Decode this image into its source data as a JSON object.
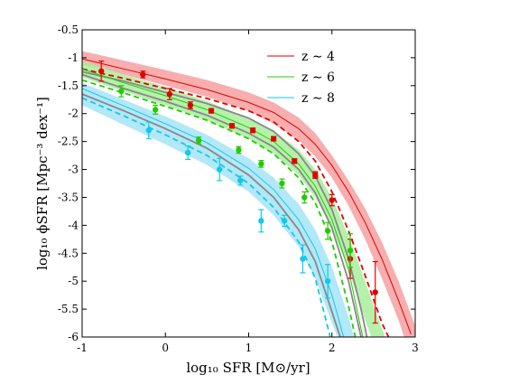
{
  "chart_data": {
    "type": "line",
    "xlabel": "log₁₀ SFR [M⊙/yr]",
    "ylabel": "log₁₀ ϕSFR [Mpc⁻³ dex⁻¹]",
    "xlim": [
      -1,
      3
    ],
    "ylim": [
      -6,
      -0.5
    ],
    "xticks": [
      "-1",
      "0",
      "1",
      "2",
      "3"
    ],
    "yticks": [
      "-0.5",
      "-1",
      "-1.5",
      "-2",
      "-2.5",
      "-3",
      "-3.5",
      "-4",
      "-4.5",
      "-5",
      "-5.5",
      "-6"
    ],
    "grid": false,
    "legend_position": "top-right",
    "legend": [
      "z ∼ 4",
      "z ∼ 6",
      "z ∼ 8"
    ],
    "colors": {
      "z4": "#e00000",
      "z4_band": "#f7a0a0",
      "z6": "#22cc00",
      "z6_band": "#a8ee9c",
      "z8": "#11c8ee",
      "z8_band": "#a4e4f6",
      "grey": "#888888"
    },
    "series": [
      {
        "name": "z ∼ 4",
        "color": "#e00000",
        "band": {
          "x": [
            -1,
            -0.5,
            0,
            0.5,
            1,
            1.3,
            1.6,
            1.8,
            2,
            2.2,
            2.4,
            2.6,
            2.8,
            3
          ],
          "upper": [
            -0.88,
            -1.05,
            -1.22,
            -1.4,
            -1.62,
            -1.8,
            -2.07,
            -2.35,
            -2.75,
            -3.2,
            -3.7,
            -4.3,
            -5,
            -5.8
          ],
          "lower": [
            -1.12,
            -1.3,
            -1.5,
            -1.7,
            -1.95,
            -2.18,
            -2.48,
            -2.77,
            -3.15,
            -3.65,
            -4.25,
            -4.95,
            -5.7,
            -6.6
          ]
        },
        "model_solid": {
          "x": [
            -1,
            -0.5,
            0,
            0.5,
            1,
            1.3,
            1.6,
            1.8,
            2,
            2.2,
            2.4,
            2.6,
            2.8,
            2.95
          ],
          "y": [
            -1.02,
            -1.2,
            -1.38,
            -1.57,
            -1.8,
            -1.98,
            -2.27,
            -2.55,
            -2.93,
            -3.4,
            -3.95,
            -4.6,
            -5.35,
            -5.95
          ]
        },
        "model_dashed": {
          "x": [
            -1,
            -0.5,
            0,
            0.5,
            1,
            1.3,
            1.6,
            1.8,
            2,
            2.2,
            2.4,
            2.6,
            2.68
          ],
          "y": [
            -1.2,
            -1.37,
            -1.55,
            -1.73,
            -1.95,
            -2.15,
            -2.5,
            -2.85,
            -3.4,
            -4.1,
            -4.9,
            -5.75,
            -6
          ]
        },
        "model_grey": {
          "x": [
            -1,
            -0.5,
            0,
            0.5,
            1,
            1.3,
            1.6,
            1.8,
            2,
            2.2,
            2.35,
            2.42
          ],
          "y": [
            -1.25,
            -1.42,
            -1.62,
            -1.82,
            -2.08,
            -2.32,
            -2.72,
            -3.12,
            -3.72,
            -4.6,
            -5.5,
            -6
          ]
        },
        "points": [
          {
            "x": -0.77,
            "y": -1.24,
            "yerr_low": 0.18,
            "yerr_high": 0.18,
            "marker": "circle"
          },
          {
            "x": -0.27,
            "y": -1.3,
            "yerr_low": 0.06,
            "yerr_high": 0.06,
            "marker": "circle"
          },
          {
            "x": 0.05,
            "y": -1.65,
            "yerr_low": 0.1,
            "yerr_high": 0.1,
            "marker": "circle"
          },
          {
            "x": 0.3,
            "y": -1.85,
            "yerr_low": 0.06,
            "yerr_high": 0.06,
            "marker": "circle"
          },
          {
            "x": 0.55,
            "y": -1.95,
            "yerr_low": 0.04,
            "yerr_high": 0.04,
            "marker": "square"
          },
          {
            "x": 0.8,
            "y": -2.22,
            "yerr_low": 0.04,
            "yerr_high": 0.04,
            "marker": "square"
          },
          {
            "x": 1.05,
            "y": -2.3,
            "yerr_low": 0.04,
            "yerr_high": 0.04,
            "marker": "square"
          },
          {
            "x": 1.3,
            "y": -2.45,
            "yerr_low": 0.04,
            "yerr_high": 0.04,
            "marker": "square"
          },
          {
            "x": 1.55,
            "y": -2.85,
            "yerr_low": 0.04,
            "yerr_high": 0.04,
            "marker": "square"
          },
          {
            "x": 1.8,
            "y": -3.1,
            "yerr_low": 0.06,
            "yerr_high": 0.06,
            "marker": "square"
          },
          {
            "x": 2.0,
            "y": -3.55,
            "yerr_low": 0.1,
            "yerr_high": 0.1,
            "marker": "circle"
          },
          {
            "x": 2.22,
            "y": -4.6,
            "yerr_low": 0.35,
            "yerr_high": 0.35,
            "marker": "circle"
          },
          {
            "x": 2.52,
            "y": -5.2,
            "yerr_low": 0.55,
            "yerr_high": 0.55,
            "marker": "circle"
          }
        ]
      },
      {
        "name": "z ∼ 6",
        "color": "#22cc00",
        "band": {
          "x": [
            -1,
            -0.5,
            0,
            0.5,
            1,
            1.3,
            1.6,
            1.8,
            2,
            2.2,
            2.4,
            2.6,
            2.75
          ],
          "upper": [
            -1.05,
            -1.3,
            -1.52,
            -1.78,
            -2.08,
            -2.3,
            -2.65,
            -3.0,
            -3.5,
            -4.2,
            -5.0,
            -5.85,
            -6.4
          ],
          "lower": [
            -1.35,
            -1.6,
            -1.85,
            -2.12,
            -2.45,
            -2.72,
            -3.1,
            -3.5,
            -4.05,
            -4.8,
            -5.7,
            -6.5,
            -7
          ]
        },
        "model_solid": {
          "x": [
            -1,
            -0.5,
            0,
            0.5,
            1,
            1.3,
            1.6,
            1.8,
            2,
            2.2,
            2.37
          ],
          "y": [
            -1.2,
            -1.45,
            -1.68,
            -1.93,
            -2.25,
            -2.5,
            -2.9,
            -3.3,
            -3.9,
            -4.8,
            -6
          ]
        },
        "model_dashed": {
          "x": [
            -1,
            -0.5,
            0,
            0.5,
            1,
            1.3,
            1.6,
            1.8,
            2,
            2.2,
            2.28
          ],
          "y": [
            -1.4,
            -1.63,
            -1.87,
            -2.12,
            -2.45,
            -2.72,
            -3.15,
            -3.6,
            -4.3,
            -5.45,
            -6
          ]
        },
        "model_grey": {
          "x": [
            -1,
            -0.5,
            0,
            0.5,
            1,
            1.3,
            1.6,
            1.8,
            2,
            2.2,
            2.35
          ],
          "y": [
            -1.3,
            -1.55,
            -1.78,
            -2.03,
            -2.35,
            -2.6,
            -3.0,
            -3.42,
            -4.05,
            -5.0,
            -6
          ]
        },
        "points": [
          {
            "x": -0.53,
            "y": -1.6,
            "yerr_low": 0.1,
            "yerr_high": 0.1,
            "marker": "circle"
          },
          {
            "x": -0.12,
            "y": -1.93,
            "yerr_low": 0.08,
            "yerr_high": 0.08,
            "marker": "circle"
          },
          {
            "x": 0.4,
            "y": -2.48,
            "yerr_low": 0.06,
            "yerr_high": 0.06,
            "marker": "circle"
          },
          {
            "x": 0.88,
            "y": -2.65,
            "yerr_low": 0.06,
            "yerr_high": 0.06,
            "marker": "circle"
          },
          {
            "x": 1.15,
            "y": -2.9,
            "yerr_low": 0.06,
            "yerr_high": 0.06,
            "marker": "circle"
          },
          {
            "x": 1.4,
            "y": -3.25,
            "yerr_low": 0.08,
            "yerr_high": 0.08,
            "marker": "circle"
          },
          {
            "x": 1.67,
            "y": -3.5,
            "yerr_low": 0.1,
            "yerr_high": 0.1,
            "marker": "circle"
          },
          {
            "x": 1.95,
            "y": -4.1,
            "yerr_low": 0.15,
            "yerr_high": 0.15,
            "marker": "circle"
          },
          {
            "x": 2.22,
            "y": -4.45,
            "yerr_low": 0.3,
            "yerr_high": 0.3,
            "marker": "circle"
          }
        ]
      },
      {
        "name": "z ∼ 8",
        "color": "#11c8ee",
        "band": {
          "x": [
            -1,
            -0.5,
            0,
            0.5,
            1,
            1.3,
            1.6,
            1.8,
            2,
            2.2,
            2.3
          ],
          "upper": [
            -1.45,
            -1.75,
            -2.05,
            -2.38,
            -2.8,
            -3.15,
            -3.62,
            -4.08,
            -4.75,
            -5.65,
            -6.2
          ],
          "lower": [
            -1.85,
            -2.2,
            -2.55,
            -2.92,
            -3.4,
            -3.82,
            -4.38,
            -4.95,
            -5.75,
            -6.5,
            -7
          ]
        },
        "model_solid": {
          "x": [
            -1,
            -0.5,
            0,
            0.5,
            1,
            1.3,
            1.6,
            1.8,
            2,
            2.14
          ],
          "y": [
            -1.55,
            -1.86,
            -2.18,
            -2.52,
            -2.98,
            -3.36,
            -3.9,
            -4.42,
            -5.25,
            -6
          ]
        },
        "model_dashed": {
          "x": [
            -1,
            -0.5,
            0,
            0.5,
            1,
            1.3,
            1.6,
            1.8,
            1.98
          ],
          "y": [
            -1.72,
            -2.04,
            -2.38,
            -2.75,
            -3.25,
            -3.68,
            -4.3,
            -4.95,
            -6
          ]
        },
        "model_grey": {
          "x": [
            -1,
            -0.5,
            0,
            0.5,
            1,
            1.3,
            1.6,
            1.8,
            2,
            2.1
          ],
          "y": [
            -1.65,
            -1.95,
            -2.27,
            -2.62,
            -3.1,
            -3.5,
            -4.08,
            -4.65,
            -5.55,
            -6
          ]
        },
        "points": [
          {
            "x": -0.2,
            "y": -2.3,
            "yerr_low": 0.15,
            "yerr_high": 0.15,
            "marker": "circle"
          },
          {
            "x": 0.27,
            "y": -2.7,
            "yerr_low": 0.12,
            "yerr_high": 0.12,
            "marker": "circle"
          },
          {
            "x": 0.65,
            "y": -3.0,
            "yerr_low": 0.2,
            "yerr_high": 0.2,
            "marker": "circle"
          },
          {
            "x": 0.9,
            "y": -3.2,
            "yerr_low": 0.08,
            "yerr_high": 0.08,
            "marker": "circle"
          },
          {
            "x": 1.15,
            "y": -3.92,
            "yerr_low": 0.2,
            "yerr_high": 0.2,
            "marker": "circle"
          },
          {
            "x": 1.43,
            "y": -3.92,
            "yerr_low": 0.1,
            "yerr_high": 0.1,
            "marker": "circle"
          },
          {
            "x": 1.65,
            "y": -4.6,
            "yerr_low": 0.25,
            "yerr_high": 0.25,
            "marker": "circle"
          },
          {
            "x": 1.95,
            "y": -5.0,
            "yerr_low": 0.3,
            "yerr_high": 0.3,
            "marker": "circle"
          }
        ]
      }
    ]
  }
}
